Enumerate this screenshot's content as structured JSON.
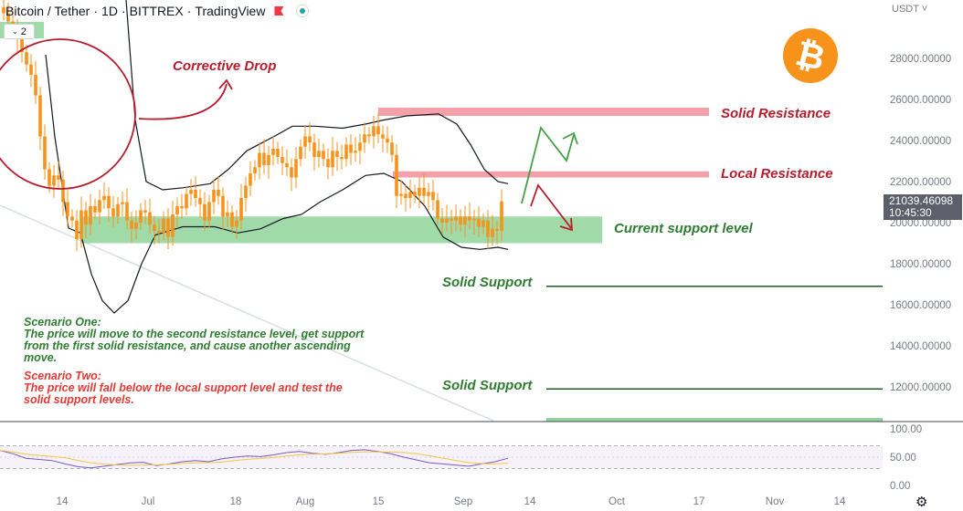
{
  "header": {
    "symbol": "Bitcoin / Tether",
    "interval": "1D",
    "exchange": "BITTREX",
    "platform": "TradingView",
    "indicator_count": "2",
    "currency": "USDT"
  },
  "price_tag": {
    "price": "21039.46098",
    "countdown": "10:45:30"
  },
  "colors": {
    "up": "#f7931a",
    "down": "#f7931a",
    "support_zone": "#8fd49a",
    "resistance_zone": "#f4a0a8",
    "band": "#131722",
    "support_line": "#1b5e20",
    "rsi_line": "#7e57c2",
    "rsi_ma": "#f5c542"
  },
  "annotations": {
    "corrective_drop": "Corrective Drop",
    "solid_resistance": "Solid Resistance",
    "local_resistance": "Local Resistance",
    "current_support": "Current support level",
    "solid_support_1": "Solid Support",
    "solid_support_2": "Solid Support",
    "scenario_one_title": "Scenario One:",
    "scenario_one_body": "The price will move to the second resistance level, get support from the first solid resistance, and cause another ascending move.",
    "scenario_two_title": "Scenario Two:",
    "scenario_two_body": "The price will fall below the local support level and test the solid support levels."
  },
  "chart_data": {
    "type": "candlestick",
    "x_ticks": [
      "14",
      "Jul",
      "18",
      "Aug",
      "15",
      "Sep",
      "14",
      "Oct",
      "17",
      "Nov",
      "14"
    ],
    "y_ticks": [
      "12000.00000",
      "14000.00000",
      "16000.00000",
      "18000.00000",
      "20000.00000",
      "22000.00000",
      "24000.00000",
      "26000.00000",
      "28000.00000"
    ],
    "ylim": [
      10800,
      30500
    ],
    "closes": [
      30200,
      29800,
      29500,
      29000,
      28300,
      27700,
      27200,
      26200,
      24200,
      22600,
      21800,
      22300,
      22100,
      21000,
      20300,
      20100,
      19200,
      20600,
      19900,
      20800,
      20500,
      21100,
      21300,
      20700,
      20300,
      20900,
      21000,
      20100,
      19700,
      20000,
      20600,
      20500,
      19900,
      19600,
      19500,
      20200,
      19300,
      20400,
      20800,
      20700,
      21400,
      21600,
      21200,
      20900,
      20100,
      21000,
      21600,
      21300,
      20300,
      20500,
      19800,
      20100,
      21200,
      21800,
      22400,
      22700,
      23400,
      22800,
      23300,
      23600,
      23200,
      22900,
      22700,
      22200,
      23100,
      23700,
      24200,
      23900,
      23200,
      23500,
      23100,
      22700,
      23500,
      23200,
      23100,
      23800,
      23400,
      23500,
      23900,
      24300,
      24200,
      24700,
      24300,
      24100,
      23900,
      23300,
      21300,
      21400,
      21200,
      21500,
      21300,
      21700,
      21300,
      21500,
      21100,
      20200,
      20000,
      20200,
      20100,
      20300,
      19900,
      20300,
      20100,
      20200,
      19800,
      20100,
      19300,
      19700,
      19600,
      21039
    ],
    "bollinger_upper": [
      {
        "x": 148,
        "y": 25000
      },
      {
        "x": 160,
        "y": 22000
      },
      {
        "x": 178,
        "y": 21600
      },
      {
        "x": 200,
        "y": 21700
      },
      {
        "x": 230,
        "y": 21900
      },
      {
        "x": 250,
        "y": 22600
      },
      {
        "x": 270,
        "y": 23500
      },
      {
        "x": 300,
        "y": 24200
      },
      {
        "x": 320,
        "y": 24700
      },
      {
        "x": 345,
        "y": 24700
      },
      {
        "x": 375,
        "y": 24600
      },
      {
        "x": 400,
        "y": 24800
      },
      {
        "x": 420,
        "y": 25000
      },
      {
        "x": 445,
        "y": 25200
      },
      {
        "x": 480,
        "y": 25300
      },
      {
        "x": 500,
        "y": 24800
      },
      {
        "x": 515,
        "y": 23800
      },
      {
        "x": 530,
        "y": 22600
      },
      {
        "x": 545,
        "y": 22000
      },
      {
        "x": 556,
        "y": 21900
      }
    ],
    "bollinger_lower": [
      {
        "x": 88,
        "y": 19500
      },
      {
        "x": 100,
        "y": 17500
      },
      {
        "x": 112,
        "y": 16200
      },
      {
        "x": 125,
        "y": 15600
      },
      {
        "x": 140,
        "y": 16200
      },
      {
        "x": 155,
        "y": 18000
      },
      {
        "x": 170,
        "y": 19400
      },
      {
        "x": 200,
        "y": 19800
      },
      {
        "x": 235,
        "y": 19800
      },
      {
        "x": 260,
        "y": 19500
      },
      {
        "x": 285,
        "y": 19700
      },
      {
        "x": 310,
        "y": 20200
      },
      {
        "x": 330,
        "y": 20400
      },
      {
        "x": 350,
        "y": 21000
      },
      {
        "x": 375,
        "y": 21600
      },
      {
        "x": 400,
        "y": 22300
      },
      {
        "x": 420,
        "y": 22400
      },
      {
        "x": 440,
        "y": 22000
      },
      {
        "x": 465,
        "y": 20800
      },
      {
        "x": 485,
        "y": 19300
      },
      {
        "x": 505,
        "y": 18800
      },
      {
        "x": 525,
        "y": 18700
      },
      {
        "x": 545,
        "y": 18800
      },
      {
        "x": 556,
        "y": 18700
      }
    ],
    "zones": {
      "solid_resistance": [
        25200,
        25600
      ],
      "local_resistance": [
        22200,
        22500
      ],
      "current_support": [
        19000,
        20300
      ]
    },
    "solid_support_levels": [
      16900,
      11900
    ],
    "rsi": {
      "y_ticks": [
        "100.00",
        "50.00",
        "0.00"
      ],
      "ylim": [
        0,
        100
      ],
      "upper": 70,
      "lower": 30,
      "values": [
        62,
        56,
        48,
        46,
        44,
        38,
        33,
        31,
        34,
        37,
        40,
        41,
        35,
        38,
        42,
        44,
        42,
        47,
        50,
        52,
        51,
        54,
        58,
        60,
        57,
        55,
        58,
        62,
        63,
        60,
        56,
        50,
        45,
        40,
        38,
        36,
        34,
        38,
        42,
        48
      ]
    }
  }
}
